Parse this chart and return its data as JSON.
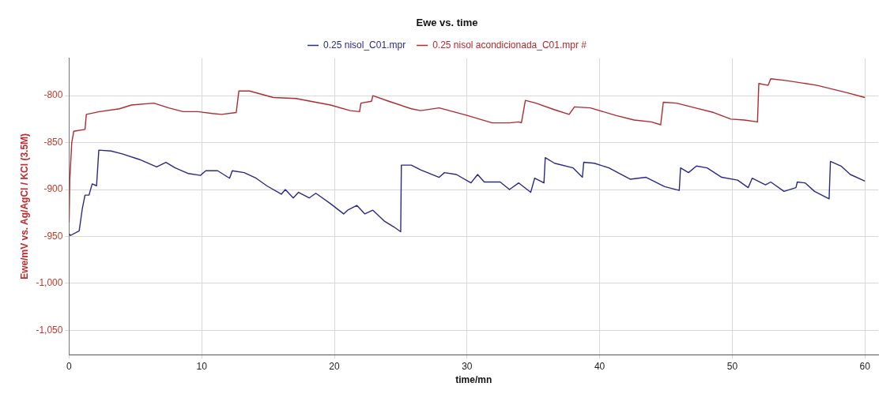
{
  "chart_data": {
    "type": "line",
    "title": "Ewe vs. time",
    "xlabel": "time/mn",
    "ylabel": "Ewe/mV vs. Ag/AgCl / KCl (3.5M)",
    "xlim": [
      0,
      61
    ],
    "xticks": [
      0,
      10,
      20,
      30,
      40,
      50,
      60
    ],
    "ylim": [
      -1076,
      -760
    ],
    "yticks": [
      {
        "value": -800,
        "label": "-800"
      },
      {
        "value": -850,
        "label": "-850"
      },
      {
        "value": -900,
        "label": "-900"
      },
      {
        "value": -950,
        "label": "-950"
      },
      {
        "value": -1000,
        "label": "-1,000"
      },
      {
        "value": -1050,
        "label": "-1,050"
      }
    ],
    "grid": true,
    "legend": "top",
    "marker": "none",
    "line_style": "solid",
    "series": [
      {
        "name": "0.25 nisol_C01.mpr",
        "color": "#2a2a86",
        "x": [
          0,
          0.1,
          0.76,
          1,
          1.2,
          1.5,
          1.74,
          2.07,
          2.24,
          3.16,
          4,
          5.3,
          6.6,
          7.3,
          8,
          9,
          9.9,
          10.3,
          11.2,
          12.1,
          12.3,
          13.2,
          14.1,
          14.9,
          16,
          16.3,
          16.9,
          17.3,
          18.1,
          18.6,
          19.7,
          20.7,
          21,
          21.7,
          22.3,
          22.9,
          23.8,
          24.5,
          25,
          25.05,
          25.8,
          26.5,
          27.9,
          28.3,
          29.2,
          30.3,
          30.8,
          31.3,
          32.5,
          33.2,
          33.9,
          34.8,
          35.1,
          35.8,
          35.9,
          36.6,
          38,
          38.7,
          38.8,
          39.6,
          40.7,
          42.3,
          43.5,
          44.9,
          46,
          46.1,
          46.7,
          47.3,
          48.1,
          49.2,
          50.4,
          51.2,
          51.5,
          52.5,
          52.9,
          53.9,
          54.8,
          54.9,
          55.5,
          56.2,
          57.3,
          57.4,
          58.2,
          58.9,
          60
        ],
        "values": [
          -947,
          -949,
          -944,
          -920,
          -906,
          -906,
          -894,
          -896,
          -858,
          -859,
          -862,
          -868,
          -876,
          -871,
          -877,
          -883,
          -885,
          -880,
          -880,
          -888,
          -880,
          -882,
          -888,
          -896,
          -905,
          -900,
          -909,
          -903,
          -909,
          -904,
          -915,
          -926,
          -922,
          -917,
          -926,
          -922,
          -934,
          -940,
          -945,
          -874,
          -874,
          -879,
          -887,
          -882,
          -884,
          -893,
          -884,
          -892,
          -892,
          -900,
          -893,
          -903,
          -888,
          -893,
          -866,
          -872,
          -877,
          -887,
          -871,
          -872,
          -877,
          -889,
          -887,
          -897,
          -901,
          -877,
          -882,
          -875,
          -877,
          -887,
          -890,
          -898,
          -888,
          -895,
          -892,
          -902,
          -898,
          -892,
          -893,
          -902,
          -910,
          -870,
          -875,
          -884,
          -891
        ]
      },
      {
        "name": "0.25 nisol acondicionada_C01.mpr #",
        "color": "#b02a2e",
        "x": [
          0,
          0.05,
          0.2,
          0.35,
          1.2,
          1.3,
          2.3,
          3.8,
          4.7,
          6.4,
          7.5,
          8.6,
          9.7,
          10.8,
          11.5,
          12.6,
          12.8,
          13.6,
          15.4,
          17.1,
          19.7,
          21.2,
          21.9,
          22,
          22.8,
          22.9,
          24.1,
          25.8,
          26.5,
          27.9,
          30,
          31.9,
          33.2,
          33.9,
          34.1,
          34.4,
          35.2,
          36.6,
          37.7,
          38.1,
          39.3,
          41.2,
          42.6,
          43.9,
          44.6,
          44.8,
          45.8,
          47.2,
          48.6,
          49.9,
          50.9,
          51.9,
          52,
          52.7,
          52.9,
          54.1,
          56.4,
          58.7,
          60
        ],
        "values": [
          -935,
          -890,
          -850,
          -838,
          -836,
          -820,
          -817,
          -814,
          -810,
          -808,
          -813,
          -817,
          -817,
          -819,
          -820,
          -818,
          -795,
          -795,
          -802,
          -803,
          -810,
          -816,
          -817,
          -808,
          -806,
          -800,
          -806,
          -814,
          -816,
          -813,
          -821,
          -829,
          -829,
          -828,
          -829,
          -805,
          -808,
          -815,
          -820,
          -812,
          -813,
          -821,
          -826,
          -828,
          -831,
          -807,
          -808,
          -813,
          -818,
          -825,
          -826,
          -828,
          -787,
          -789,
          -782,
          -784,
          -789,
          -797,
          -802
        ]
      }
    ]
  }
}
